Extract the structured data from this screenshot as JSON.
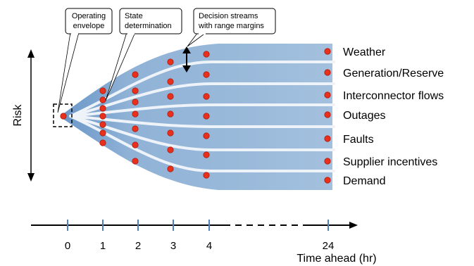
{
  "callouts": {
    "envelope": [
      "Operating",
      "envelope"
    ],
    "state": [
      "State",
      "determination"
    ],
    "decision": [
      "Decision streams",
      "with range margins"
    ]
  },
  "streams": [
    {
      "label": "Weather",
      "color": "#9bbad8"
    },
    {
      "label": "Generation/Reserve",
      "color": "#9bbad8"
    },
    {
      "label": "Interconnector flows",
      "color": "#9bbad8"
    },
    {
      "label": "Outages",
      "color": "#9bbad8"
    },
    {
      "label": "Faults",
      "color": "#9bbad8"
    },
    {
      "label": "Supplier incentives",
      "color": "#9bbad8"
    },
    {
      "label": "Demand",
      "color": "#9bbad8"
    }
  ],
  "risk_label": "Risk",
  "time_axis": {
    "ticks": [
      "0",
      "1",
      "2",
      "3",
      "4",
      "24"
    ],
    "title": "Time ahead (hr)"
  },
  "colors": {
    "stream_fill": "#9bbad8",
    "stream_gap": "#eef3f9",
    "point": "#e8301c",
    "tick": "#4f81bd",
    "axis": "#000000"
  }
}
